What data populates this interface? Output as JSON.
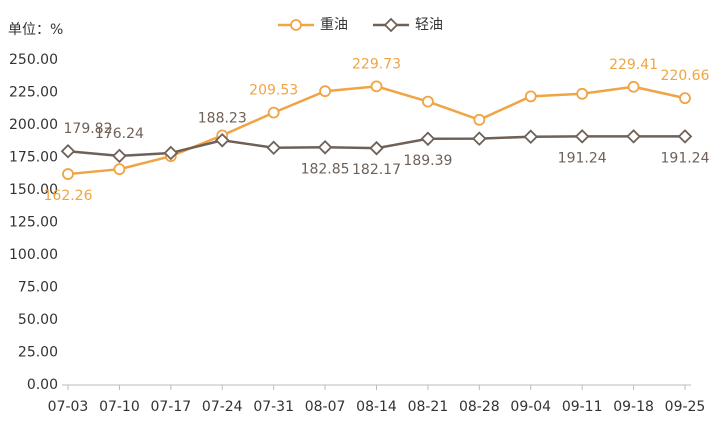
{
  "chart_data": {
    "type": "line",
    "ylabel": "单位：%",
    "categories": [
      "07-03",
      "07-10",
      "07-17",
      "07-24",
      "07-31",
      "08-07",
      "08-14",
      "08-21",
      "08-28",
      "09-04",
      "09-11",
      "09-18",
      "09-25"
    ],
    "series": [
      {
        "name": "重油",
        "color": "#f0a443",
        "values": [
          162.26,
          166,
          176,
          192,
          209.53,
          226,
          229.73,
          218,
          204,
          222,
          224,
          229.41,
          220.66
        ],
        "value_labels": [
          "162.26",
          null,
          null,
          null,
          "209.53",
          null,
          "229.73",
          null,
          null,
          null,
          null,
          "229.41",
          "220.66"
        ]
      },
      {
        "name": "轻油",
        "color": "#6f6157",
        "values": [
          179.82,
          176.24,
          178.5,
          188.23,
          182.5,
          182.85,
          182.17,
          189.39,
          189.5,
          191,
          191.24,
          191.24,
          191.24
        ],
        "value_labels": [
          "179.82",
          "176.24",
          null,
          "188.23",
          null,
          "182.85",
          "182.17",
          "189.39",
          null,
          null,
          "191.24",
          null,
          "191.24"
        ]
      }
    ],
    "ylim": [
      0,
      250
    ],
    "yticks": [
      {
        "value": 0,
        "label": "0.00"
      },
      {
        "value": 25,
        "label": "25.00"
      },
      {
        "value": 50,
        "label": "50.00"
      },
      {
        "value": 75,
        "label": "75.00"
      },
      {
        "value": 100,
        "label": "100.00"
      },
      {
        "value": 125,
        "label": "125.00"
      },
      {
        "value": 150,
        "label": "150.00"
      },
      {
        "value": 175,
        "label": "175.00"
      },
      {
        "value": 200,
        "label": "200.00"
      },
      {
        "value": 225,
        "label": "225.00"
      },
      {
        "value": 250,
        "label": "250.00"
      }
    ],
    "grid": false,
    "legend": "top"
  }
}
